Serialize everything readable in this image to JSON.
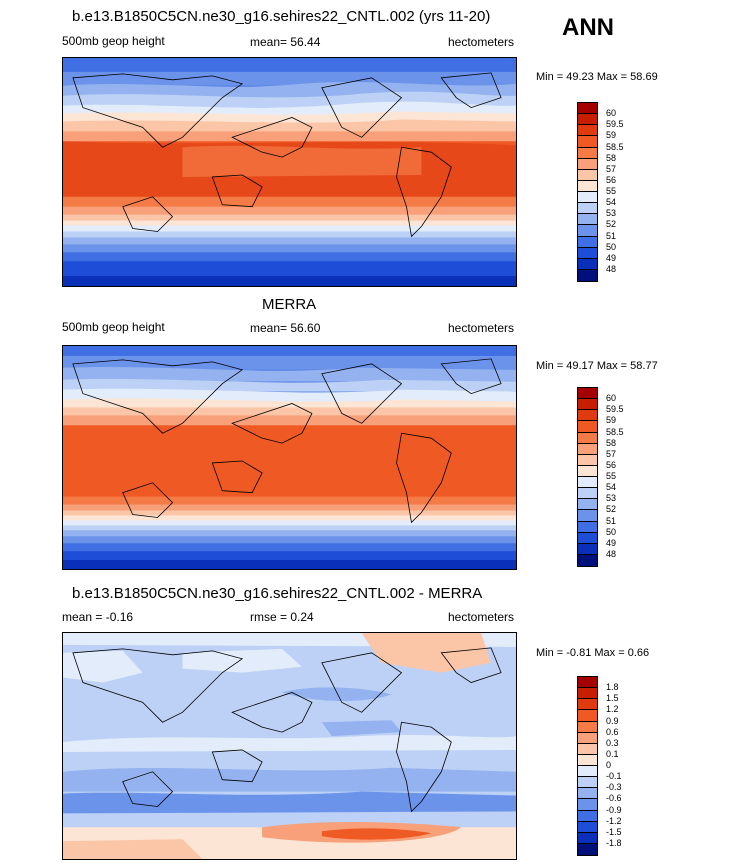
{
  "season": "ANN",
  "panels": [
    {
      "title": "b.e13.B1850C5CN.ne30_g16.sehires22_CNTL.002 (yrs 11-20)",
      "left_label": "500mb geop height",
      "mean_text": "mean=  56.44",
      "units": "hectometers",
      "minmax": "Min =  49.23 Max =  58.69",
      "colorbar_labels": [
        "60",
        "59.5",
        "59",
        "58.5",
        "58",
        "57",
        "56",
        "55",
        "54",
        "53",
        "52",
        "51",
        "50",
        "49",
        "48"
      ],
      "colorbar_colors": [
        "#a50000",
        "#c81e00",
        "#e03a10",
        "#ef5a24",
        "#f47b46",
        "#f7a07a",
        "#fbc6a8",
        "#fde5d6",
        "#e3ecfa",
        "#bcd1f5",
        "#93b2ef",
        "#6b93ea",
        "#3f6fe3",
        "#1e4ed8",
        "#0a2fb8",
        "#00107a"
      ]
    },
    {
      "title": "MERRA",
      "left_label": "500mb geop height",
      "mean_text": "mean=  56.60",
      "units": "hectometers",
      "minmax": "Min =  49.17 Max =  58.77",
      "colorbar_labels": [
        "60",
        "59.5",
        "59",
        "58.5",
        "58",
        "57",
        "56",
        "55",
        "54",
        "53",
        "52",
        "51",
        "50",
        "49",
        "48"
      ],
      "colorbar_colors": [
        "#a50000",
        "#c81e00",
        "#e03a10",
        "#ef5a24",
        "#f47b46",
        "#f7a07a",
        "#fbc6a8",
        "#fde5d6",
        "#e3ecfa",
        "#bcd1f5",
        "#93b2ef",
        "#6b93ea",
        "#3f6fe3",
        "#1e4ed8",
        "#0a2fb8",
        "#00107a"
      ]
    },
    {
      "title": "b.e13.B1850C5CN.ne30_g16.sehires22_CNTL.002 - MERRA",
      "left_label": "mean =  -0.16",
      "mean_text": "rmse =   0.24",
      "units": "hectometers",
      "minmax": "Min =  -0.81 Max =   0.66",
      "colorbar_labels": [
        "1.8",
        "1.5",
        "1.2",
        "0.9",
        "0.6",
        "0.3",
        "0.1",
        "0",
        "-0.1",
        "-0.3",
        "-0.6",
        "-0.9",
        "-1.2",
        "-1.5",
        "-1.8"
      ],
      "colorbar_colors": [
        "#a50000",
        "#c81e00",
        "#e03a10",
        "#ef5a24",
        "#f47b46",
        "#f7a07a",
        "#fbc6a8",
        "#fde5d6",
        "#e3ecfa",
        "#bcd1f5",
        "#93b2ef",
        "#6b93ea",
        "#3f6fe3",
        "#1e4ed8",
        "#0a2fb8",
        "#00107a"
      ]
    }
  ]
}
